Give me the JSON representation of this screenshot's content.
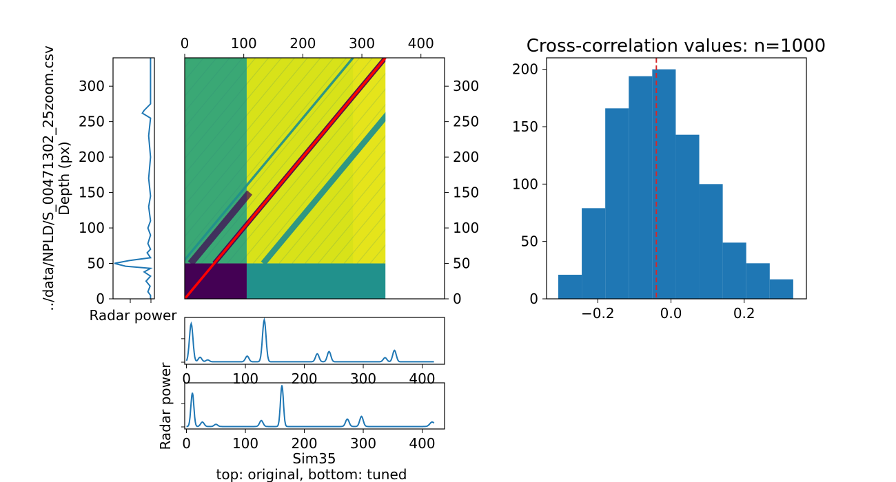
{
  "colors": {
    "series": "#1f77b4",
    "bar": "#1f77b4",
    "diagonal": "#ff0000",
    "marker_line": "#d62728",
    "viridis_dark": "#440154",
    "viridis_teal": "#21918c",
    "viridis_green": "#3aa875",
    "viridis_yellow": "#d8e219",
    "viridis_bright": "#f0e51e"
  },
  "chart_data": [
    {
      "id": "radar_depth_profile",
      "type": "line",
      "title": "",
      "xlabel": "Radar power",
      "ylabel": "Depth (px)",
      "side_label": "../data/NPLD/S_00471302_25zoom.csv",
      "ylim": [
        0,
        340
      ],
      "yticks": [
        0,
        50,
        100,
        150,
        200,
        250,
        300
      ],
      "grid": false,
      "series": [
        {
          "x": [
            0.97,
            0.97,
            0.9,
            0.96,
            0.85,
            0.97,
            0.8,
            0.97,
            0.3,
            0.0,
            0.4,
            0.97,
            0.88,
            0.97,
            0.9,
            0.97,
            0.9,
            0.97,
            0.92,
            0.97,
            0.92,
            0.97,
            0.92,
            0.97,
            0.75,
            0.8,
            0.97,
            0.97
          ],
          "y": [
            0,
            5,
            10,
            18,
            25,
            32,
            38,
            43,
            46,
            50,
            54,
            58,
            65,
            70,
            78,
            90,
            100,
            110,
            130,
            145,
            170,
            200,
            230,
            255,
            262,
            266,
            275,
            340
          ]
        }
      ]
    },
    {
      "id": "correlation_matrix",
      "type": "heatmap",
      "title": "",
      "xlim": [
        0,
        440
      ],
      "ylim": [
        0,
        340
      ],
      "xticks": [
        0,
        100,
        200,
        300,
        400
      ],
      "yticks": [
        0,
        50,
        100,
        150,
        200,
        250,
        300
      ],
      "extent": [
        0,
        340,
        0,
        340
      ],
      "blocks": [
        {
          "x0": 0,
          "x1": 105,
          "y0": 50,
          "y1": 340,
          "level": "green"
        },
        {
          "x0": 105,
          "x1": 340,
          "y0": 50,
          "y1": 340,
          "level": "yellow"
        },
        {
          "x0": 0,
          "x1": 105,
          "y0": 0,
          "y1": 50,
          "level": "dark"
        },
        {
          "x0": 105,
          "x1": 340,
          "y0": 0,
          "y1": 50,
          "level": "teal"
        }
      ],
      "bands": [
        {
          "offset": 0,
          "width": 8,
          "from_y": 50,
          "level": "dark"
        },
        {
          "offset": 83,
          "width": 10,
          "from_y": 50,
          "level": "teal"
        },
        {
          "offset": -55,
          "width": 4,
          "from_y": 50,
          "level": "teal"
        }
      ],
      "path": {
        "x": [
          0,
          340
        ],
        "y": [
          0,
          340
        ]
      }
    },
    {
      "id": "radar_original",
      "type": "line",
      "title": "",
      "xlabel": "",
      "ylabel": "",
      "xlim": [
        -3,
        438
      ],
      "xticks": [
        0,
        100,
        200,
        300,
        400
      ],
      "series": [
        {
          "peaks": [
            [
              8,
              1.0,
              3
            ],
            [
              23,
              0.12,
              3
            ],
            [
              36,
              0.05,
              3
            ],
            [
              103,
              0.15,
              3
            ],
            [
              132,
              1.1,
              3
            ],
            [
              222,
              0.21,
              3
            ],
            [
              242,
              0.27,
              3
            ],
            [
              337,
              0.11,
              3
            ],
            [
              353,
              0.3,
              3
            ]
          ],
          "baseline": 0.01,
          "x_range": [
            0,
            420
          ]
        }
      ]
    },
    {
      "id": "radar_tuned",
      "type": "line",
      "title": "",
      "xlabel": "Sim35",
      "ylabel": "Radar power",
      "caption": "top: original, bottom: tuned",
      "xlim": [
        -3,
        438
      ],
      "xticks": [
        0,
        100,
        200,
        300,
        400
      ],
      "series": [
        {
          "peaks": [
            [
              10,
              0.9,
              2.5
            ],
            [
              27,
              0.12,
              3
            ],
            [
              50,
              0.06,
              3
            ],
            [
              127,
              0.16,
              3
            ],
            [
              162,
              1.1,
              2.5
            ],
            [
              273,
              0.2,
              3
            ],
            [
              297,
              0.27,
              3
            ],
            [
              417,
              0.12,
              4
            ]
          ],
          "baseline": 0.01,
          "x_range": [
            0,
            420
          ]
        }
      ]
    },
    {
      "id": "cross_correlation_histogram",
      "type": "bar",
      "title": "Cross-correlation values: n=1000",
      "xlabel": "",
      "ylabel": "",
      "xlim": [
        -0.34,
        0.37
      ],
      "ylim": [
        0,
        210
      ],
      "xticks": [
        -0.2,
        0.0,
        0.2
      ],
      "xtick_labels": [
        "−0.2",
        "0.0",
        "0.2"
      ],
      "yticks": [
        0,
        50,
        100,
        150,
        200
      ],
      "bin_edges": [
        -0.308,
        -0.2438,
        -0.1796,
        -0.1154,
        -0.0512,
        0.013,
        0.0772,
        0.1414,
        0.2056,
        0.2698,
        0.334
      ],
      "counts": [
        21,
        79,
        166,
        194,
        200,
        143,
        100,
        49,
        31,
        17
      ],
      "vline": {
        "x": -0.04,
        "style": "dashed"
      }
    }
  ]
}
